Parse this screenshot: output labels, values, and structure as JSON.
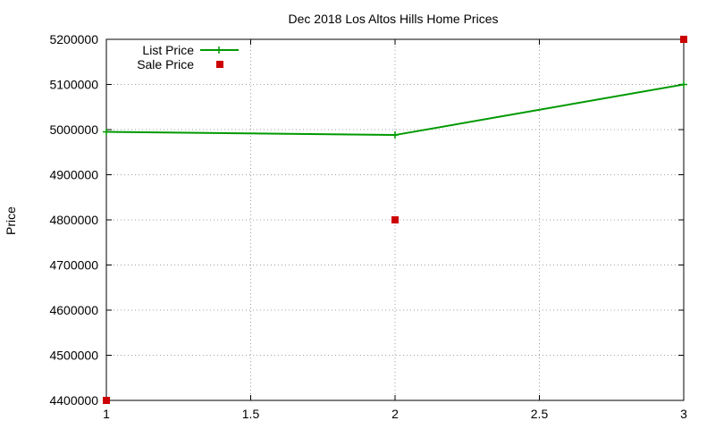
{
  "chart_data": {
    "type": "line",
    "title": "Dec 2018 Los Altos Hills Home Prices",
    "xlabel": "",
    "ylabel": "Price",
    "xlim": [
      1,
      3
    ],
    "ylim": [
      4400000,
      5200000
    ],
    "xticks": [
      "1",
      "1.5",
      "2",
      "2.5",
      "3"
    ],
    "xtick_values": [
      1,
      1.5,
      2,
      2.5,
      3
    ],
    "yticks": [
      "4400000",
      "4500000",
      "4600000",
      "4700000",
      "4800000",
      "4900000",
      "5000000",
      "5100000",
      "5200000"
    ],
    "ytick_values": [
      4400000,
      4500000,
      4600000,
      4700000,
      4800000,
      4900000,
      5000000,
      5100000,
      5200000
    ],
    "grid": true,
    "legend_position": "top-left",
    "series": [
      {
        "name": "List Price",
        "kind": "line+cross",
        "color": "#009900",
        "x": [
          1,
          2,
          3
        ],
        "y": [
          4995000,
          4988000,
          5100000
        ]
      },
      {
        "name": "Sale Price",
        "kind": "square",
        "color": "#cc0000",
        "x": [
          1,
          2,
          3
        ],
        "y": [
          4400000,
          4800000,
          5200000
        ]
      }
    ]
  }
}
